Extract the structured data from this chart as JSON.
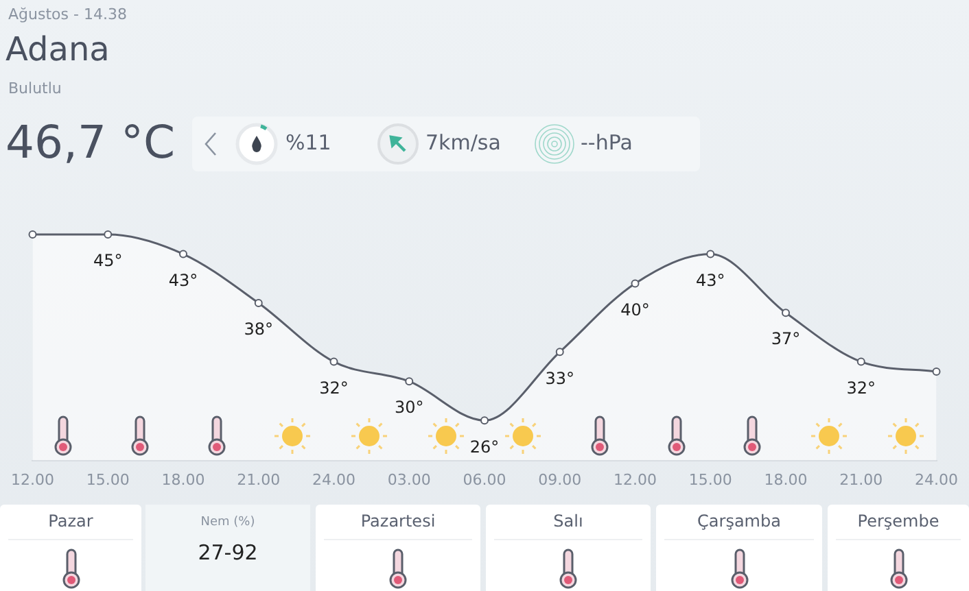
{
  "chart_data": {
    "type": "line",
    "title": "Adana",
    "subtitle": "Ağustos - 14.38",
    "categories": [
      "12.00",
      "15.00",
      "18.00",
      "21.00",
      "24.00",
      "03.00",
      "06.00",
      "09.00",
      "12.00",
      "15.00",
      "18.00",
      "21.00",
      "24.00"
    ],
    "series": [
      {
        "type": "area",
        "color": "#5a5f6b",
        "values": [
          45,
          45,
          43,
          38,
          32,
          30,
          26,
          33,
          40,
          43,
          37,
          32,
          31
        ],
        "value_labels": [
          null,
          "45°",
          "43°",
          "38°",
          "32°",
          "30°",
          "26°",
          "33°",
          "40°",
          "43°",
          "37°",
          "32°",
          null
        ]
      }
    ],
    "marker": "circle",
    "line_style": "solid",
    "grid": false,
    "legend": false,
    "annotations": [
      "Bulutlu",
      "46,7 °C",
      "%11",
      "7km/sa",
      "--hPa",
      "Pazar",
      "Nem (%)",
      "27-92",
      "Pazartesi",
      "Salı",
      "Çarşamba",
      "Perşembe"
    ]
  }
}
